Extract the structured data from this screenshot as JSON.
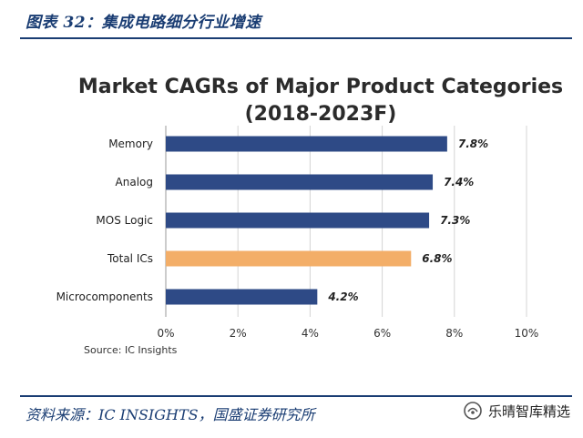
{
  "caption": {
    "figure_title": "图表 32：集成电路细分行业增速",
    "source_note": "资料来源：IC INSIGHTS，国盛证券研究所"
  },
  "watermark": {
    "text": "乐晴智库精选",
    "icon": "wechat-channel-icon"
  },
  "chart_data": {
    "type": "bar",
    "orientation": "horizontal",
    "title": "Market CAGRs of Major Product Categories",
    "subtitle": "(2018-2023F)",
    "categories": [
      "Memory",
      "Analog",
      "MOS Logic",
      "Total ICs",
      "Microcomponents"
    ],
    "values": [
      7.8,
      7.4,
      7.3,
      6.8,
      4.2
    ],
    "value_labels": [
      "7.8%",
      "7.4%",
      "7.3%",
      "6.8%",
      "4.2%"
    ],
    "colors": [
      "#2e4a86",
      "#2e4a86",
      "#2e4a86",
      "#f3ae68",
      "#2e4a86"
    ],
    "xlim": [
      0,
      10
    ],
    "xticks": [
      "0%",
      "2%",
      "4%",
      "6%",
      "8%",
      "10%"
    ],
    "grid": true,
    "source": "Source:  IC Insights"
  }
}
